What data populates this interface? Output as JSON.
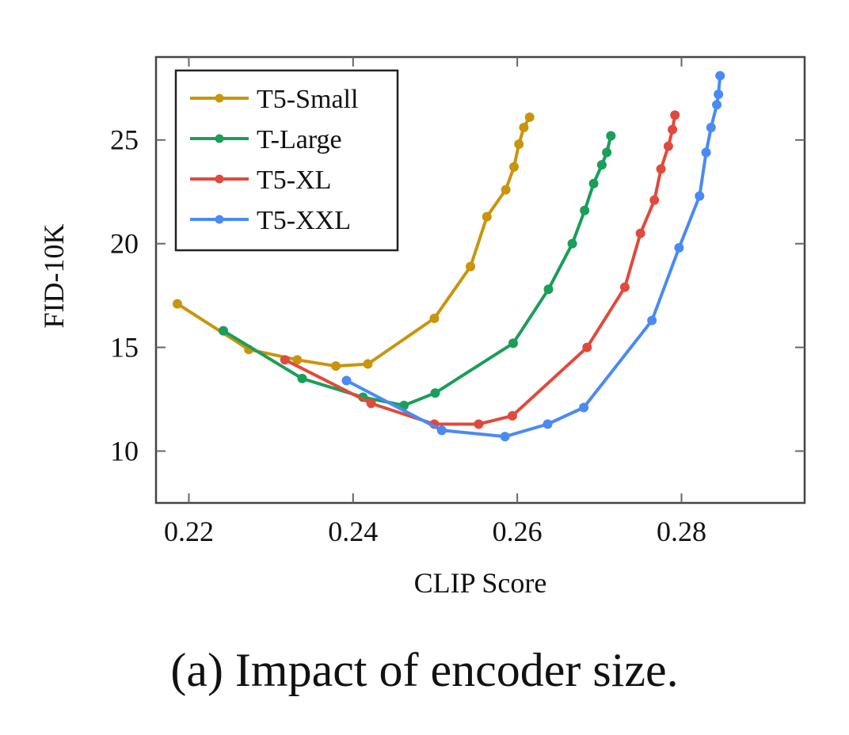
{
  "chart_data": {
    "type": "line",
    "title": "",
    "xlabel": "CLIP Score",
    "ylabel": "FID-10K",
    "xlim": [
      0.216,
      0.295
    ],
    "ylim": [
      7.5,
      29.0
    ],
    "xticks": [
      0.22,
      0.24,
      0.26,
      0.28
    ],
    "xtick_labels": [
      "0.22",
      "0.24",
      "0.26",
      "0.28"
    ],
    "yticks": [
      10,
      15,
      20,
      25
    ],
    "ytick_labels": [
      "10",
      "15",
      "20",
      "25"
    ],
    "grid": false,
    "legend_position": "top-left",
    "series": [
      {
        "name": "T5-Small",
        "color": "#c9950c",
        "x": [
          0.2186,
          0.2273,
          0.2332,
          0.2379,
          0.2418,
          0.2499,
          0.2543,
          0.2563,
          0.2586,
          0.2596,
          0.2602,
          0.2608,
          0.2615
        ],
        "y": [
          17.1,
          14.9,
          14.4,
          14.1,
          14.2,
          16.4,
          18.9,
          21.3,
          22.6,
          23.7,
          24.8,
          25.6,
          26.1
        ]
      },
      {
        "name": "T-Large",
        "color": "#1a9e5a",
        "x": [
          0.2242,
          0.2338,
          0.2412,
          0.2462,
          0.25,
          0.2595,
          0.2638,
          0.2667,
          0.2682,
          0.2693,
          0.2703,
          0.2709,
          0.2714
        ],
        "y": [
          15.8,
          13.5,
          12.6,
          12.2,
          12.8,
          15.2,
          17.8,
          20.0,
          21.6,
          22.9,
          23.8,
          24.4,
          25.2
        ]
      },
      {
        "name": "T5-XL",
        "color": "#e04a3c",
        "x": [
          0.2317,
          0.2422,
          0.2499,
          0.2553,
          0.2594,
          0.2685,
          0.2731,
          0.275,
          0.2767,
          0.2775,
          0.2784,
          0.2789,
          0.2792
        ],
        "y": [
          14.4,
          12.3,
          11.3,
          11.3,
          11.7,
          15.0,
          17.9,
          20.5,
          22.1,
          23.6,
          24.7,
          25.5,
          26.2
        ]
      },
      {
        "name": "T5-XXL",
        "color": "#4a8af4",
        "x": [
          0.2392,
          0.2508,
          0.2585,
          0.2637,
          0.2681,
          0.2764,
          0.2797,
          0.2822,
          0.283,
          0.2836,
          0.2843,
          0.2845,
          0.2847
        ],
        "y": [
          13.4,
          11.0,
          10.7,
          11.3,
          12.1,
          16.3,
          19.8,
          22.3,
          24.4,
          25.6,
          26.7,
          27.2,
          28.1
        ]
      }
    ]
  },
  "caption": "(a) Impact of encoder size."
}
